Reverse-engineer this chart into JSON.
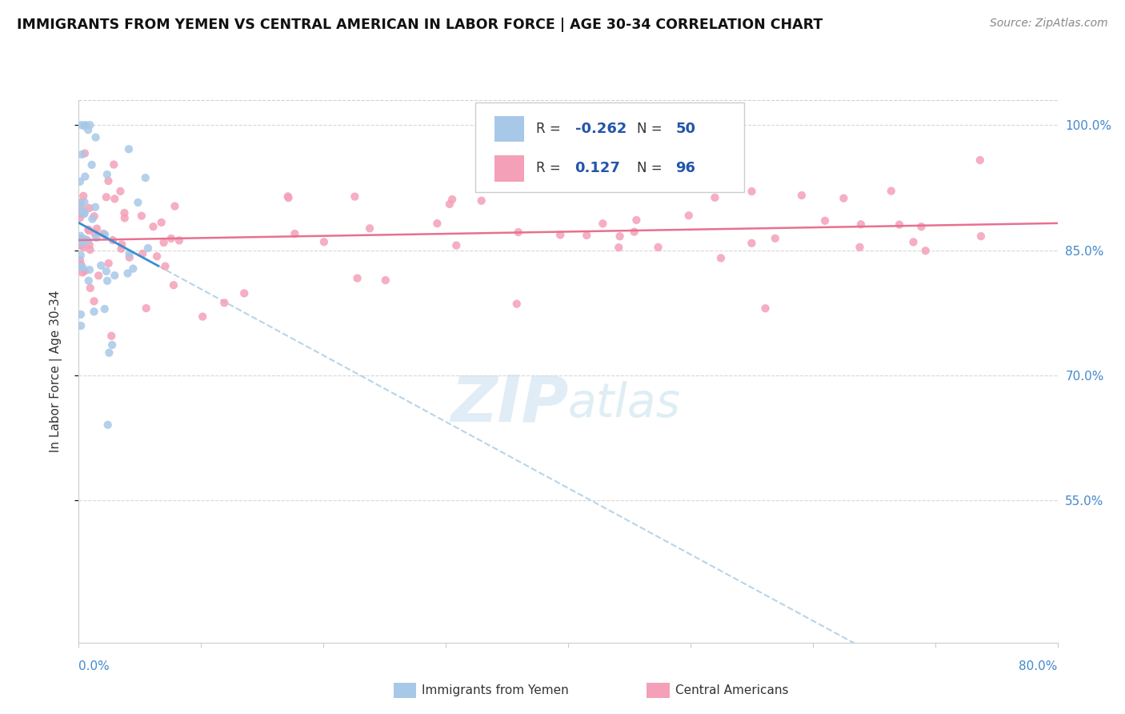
{
  "title": "IMMIGRANTS FROM YEMEN VS CENTRAL AMERICAN IN LABOR FORCE | AGE 30-34 CORRELATION CHART",
  "source_text": "Source: ZipAtlas.com",
  "ylabel": "In Labor Force | Age 30-34",
  "color_yemen": "#a8c8e8",
  "color_central": "#f4a0b8",
  "color_line_yemen": "#3a8fd0",
  "color_line_central": "#e87090",
  "color_dashed": "#b8d4e8",
  "watermark_zip": "ZIP",
  "watermark_atlas": "atlas",
  "ylim_low": 0.38,
  "ylim_high": 1.03,
  "xlim_low": 0.0,
  "xlim_high": 0.8,
  "yticks": [
    1.0,
    0.85,
    0.7,
    0.55
  ],
  "ytick_labels": [
    "100.0%",
    "85.0%",
    "70.0%",
    "55.0%"
  ],
  "legend_r1_val": "-0.262",
  "legend_n1": "50",
  "legend_r2_val": "0.127",
  "legend_n2": "96"
}
